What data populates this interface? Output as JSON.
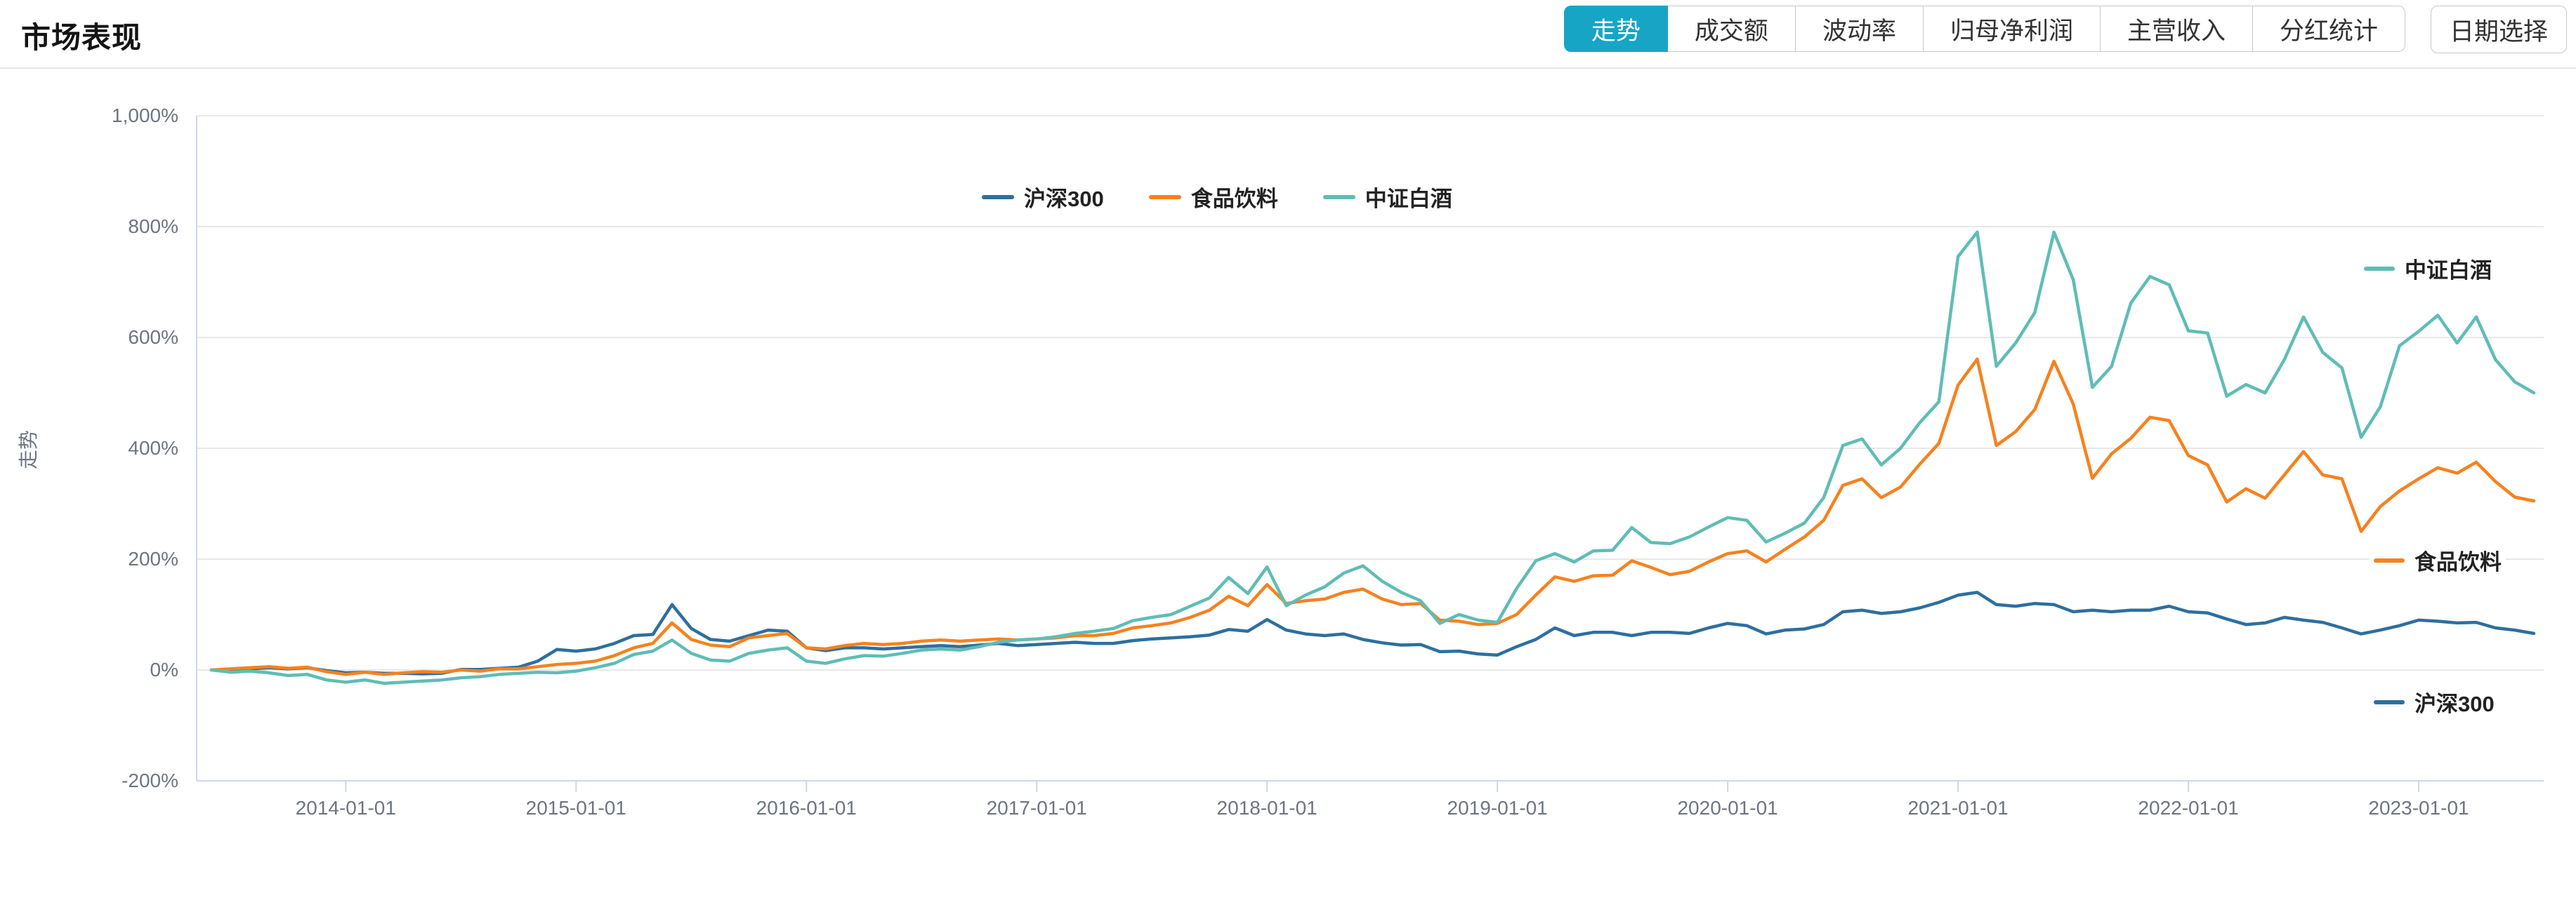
{
  "header": {
    "title": "市场表现",
    "tabs": [
      {
        "label": "走势",
        "active": true
      },
      {
        "label": "成交额",
        "active": false
      },
      {
        "label": "波动率",
        "active": false
      },
      {
        "label": "归母净利润",
        "active": false
      },
      {
        "label": "主营收入",
        "active": false
      },
      {
        "label": "分红统计",
        "active": false
      }
    ],
    "date_button": "日期选择"
  },
  "colors": {
    "accent_cyan": "#17a5c5",
    "grid": "#e8e8e8",
    "axis_line": "#ccd6eb",
    "tick_text": "#6e7580"
  },
  "chart_data": {
    "type": "line",
    "title": "",
    "ylabel": "走势",
    "ylim": [
      -200,
      1000
    ],
    "grid": true,
    "legend_position": "top-center",
    "y_ticks": [
      "1,000%",
      "800%",
      "600%",
      "400%",
      "200%",
      "0%",
      "-200%"
    ],
    "y_tick_values": [
      1000,
      800,
      600,
      400,
      200,
      0,
      -200
    ],
    "x_ticks": [
      "2014-01-01",
      "2015-01-01",
      "2016-01-01",
      "2017-01-01",
      "2018-01-01",
      "2019-01-01",
      "2020-01-01",
      "2021-01-01",
      "2022-01-01",
      "2023-01-01"
    ],
    "x": [
      "2013-06",
      "2013-07",
      "2013-08",
      "2013-09",
      "2013-10",
      "2013-11",
      "2013-12",
      "2014-01",
      "2014-02",
      "2014-03",
      "2014-04",
      "2014-05",
      "2014-06",
      "2014-07",
      "2014-08",
      "2014-09",
      "2014-10",
      "2014-11",
      "2014-12",
      "2015-01",
      "2015-02",
      "2015-03",
      "2015-04",
      "2015-05",
      "2015-06",
      "2015-07",
      "2015-08",
      "2015-09",
      "2015-10",
      "2015-11",
      "2015-12",
      "2016-01",
      "2016-02",
      "2016-03",
      "2016-04",
      "2016-05",
      "2016-06",
      "2016-07",
      "2016-08",
      "2016-09",
      "2016-10",
      "2016-11",
      "2016-12",
      "2017-01",
      "2017-02",
      "2017-03",
      "2017-04",
      "2017-05",
      "2017-06",
      "2017-07",
      "2017-08",
      "2017-09",
      "2017-10",
      "2017-11",
      "2017-12",
      "2018-01",
      "2018-02",
      "2018-03",
      "2018-04",
      "2018-05",
      "2018-06",
      "2018-07",
      "2018-08",
      "2018-09",
      "2018-10",
      "2018-11",
      "2018-12",
      "2019-01",
      "2019-02",
      "2019-03",
      "2019-04",
      "2019-05",
      "2019-06",
      "2019-07",
      "2019-08",
      "2019-09",
      "2019-10",
      "2019-11",
      "2019-12",
      "2020-01",
      "2020-02",
      "2020-03",
      "2020-04",
      "2020-05",
      "2020-06",
      "2020-07",
      "2020-08",
      "2020-09",
      "2020-10",
      "2020-11",
      "2020-12",
      "2021-01",
      "2021-02",
      "2021-03",
      "2021-04",
      "2021-05",
      "2021-06",
      "2021-07",
      "2021-08",
      "2021-09",
      "2021-10",
      "2021-11",
      "2021-12",
      "2022-01",
      "2022-02",
      "2022-03",
      "2022-04",
      "2022-05",
      "2022-06",
      "2022-07",
      "2022-08",
      "2022-09",
      "2022-10",
      "2022-11",
      "2022-12",
      "2023-01",
      "2023-02",
      "2023-03",
      "2023-04",
      "2023-05",
      "2023-06",
      "2023-07"
    ],
    "series": [
      {
        "name": "沪深300",
        "color": "#2d6f9f",
        "unit": "%",
        "values": [
          0,
          -2,
          2,
          4,
          2,
          4,
          -1,
          -5,
          -4,
          -6,
          -6,
          -7,
          -6,
          1,
          1,
          3,
          5,
          16,
          37,
          34,
          38,
          48,
          62,
          64,
          118,
          75,
          55,
          52,
          62,
          72,
          70,
          40,
          35,
          40,
          40,
          38,
          40,
          42,
          44,
          42,
          45,
          48,
          44,
          46,
          48,
          50,
          48,
          48,
          53,
          56,
          58,
          60,
          63,
          73,
          70,
          91,
          72,
          65,
          62,
          65,
          55,
          49,
          45,
          46,
          33,
          34,
          29,
          27,
          42,
          55,
          76,
          62,
          68,
          68,
          62,
          68,
          68,
          66,
          76,
          84,
          80,
          65,
          72,
          74,
          82,
          105,
          108,
          102,
          105,
          112,
          122,
          135,
          140,
          118,
          115,
          120,
          118,
          105,
          108,
          105,
          108,
          108,
          115,
          105,
          103,
          92,
          82,
          85,
          95,
          90,
          86,
          76,
          65,
          72,
          80,
          90,
          88,
          85,
          86,
          76,
          72,
          66
        ]
      },
      {
        "name": "食品饮料",
        "color": "#f5821f",
        "unit": "%",
        "values": [
          0,
          2,
          4,
          6,
          3,
          5,
          -3,
          -8,
          -4,
          -8,
          -5,
          -3,
          -4,
          0,
          -2,
          2,
          2,
          6,
          10,
          12,
          16,
          26,
          40,
          48,
          85,
          55,
          45,
          42,
          58,
          62,
          66,
          40,
          38,
          44,
          48,
          46,
          48,
          52,
          54,
          52,
          54,
          56,
          54,
          56,
          58,
          62,
          62,
          66,
          76,
          80,
          85,
          95,
          108,
          133,
          116,
          154,
          120,
          125,
          128,
          140,
          146,
          128,
          118,
          120,
          90,
          88,
          82,
          84,
          100,
          135,
          168,
          160,
          170,
          171,
          197,
          185,
          172,
          178,
          195,
          210,
          215,
          195,
          218,
          240,
          270,
          333,
          345,
          311,
          330,
          371,
          409,
          514,
          561,
          405,
          430,
          470,
          557,
          480,
          346,
          390,
          418,
          456,
          450,
          387,
          370,
          303,
          327,
          310,
          352,
          394,
          352,
          345,
          250,
          295,
          323,
          345,
          365,
          355,
          375,
          340,
          312,
          305
        ]
      },
      {
        "name": "中证白酒",
        "color": "#5fbdb5",
        "unit": "%",
        "values": [
          0,
          -4,
          -2,
          -5,
          -10,
          -8,
          -18,
          -22,
          -18,
          -24,
          -22,
          -20,
          -18,
          -14,
          -12,
          -8,
          -6,
          -4,
          -5,
          -2,
          4,
          12,
          28,
          34,
          54,
          30,
          18,
          16,
          30,
          36,
          40,
          16,
          12,
          20,
          26,
          25,
          30,
          36,
          38,
          36,
          42,
          50,
          54,
          56,
          60,
          66,
          70,
          75,
          89,
          95,
          100,
          115,
          130,
          167,
          138,
          186,
          116,
          135,
          150,
          175,
          188,
          160,
          140,
          125,
          84,
          100,
          90,
          86,
          147,
          197,
          210,
          195,
          215,
          216,
          257,
          230,
          228,
          240,
          258,
          275,
          270,
          231,
          247,
          265,
          311,
          405,
          417,
          370,
          400,
          446,
          484,
          746,
          790,
          548,
          590,
          645,
          790,
          704,
          510,
          548,
          662,
          710,
          695,
          612,
          608,
          494,
          515,
          500,
          560,
          637,
          573,
          545,
          420,
          475,
          585,
          611,
          640,
          590,
          637,
          560,
          520,
          500
        ]
      }
    ],
    "end_label_series_order": [
      2,
      1,
      0
    ]
  }
}
